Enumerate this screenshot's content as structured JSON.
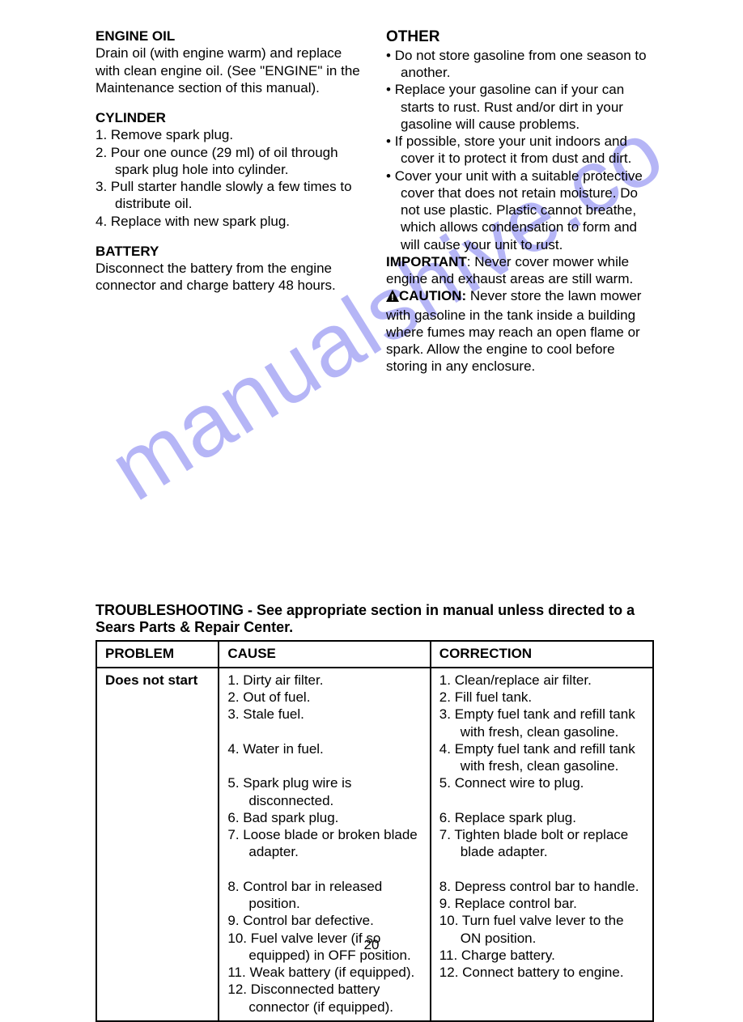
{
  "watermark": "manualshive.co",
  "pageNumber": "20",
  "left": {
    "engineOil": {
      "heading": "ENGINE OIL",
      "body": "Drain oil (with engine warm) and replace with clean engine oil.  (See \"ENGINE\" in the Maintenance section of this manual)."
    },
    "cylinder": {
      "heading": "CYLINDER",
      "items": [
        "1.  Remove spark plug.",
        "2.  Pour one ounce (29 ml) of oil through spark plug hole into cylinder.",
        "3.  Pull starter handle slowly a few times to distribute oil.",
        "4.  Replace with new spark plug."
      ]
    },
    "battery": {
      "heading": "BATTERY",
      "body": "Disconnect the battery from the engine connector and charge battery 48 hours."
    }
  },
  "right": {
    "other": {
      "heading": "OTHER",
      "bullets": [
        "Do not store gasoline from one season to another.",
        "Replace your gasoline can if your can starts to rust.  Rust and/or dirt in your gasoline will cause problems.",
        "If possible, store your unit indoors and cover it to protect it from dust and dirt.",
        "Cover your unit with a suitable protective cover that does not retain moisture.  Do not use plastic.  Plastic cannot breathe, which allows condensation to form and will cause your unit to rust."
      ],
      "importantLabel": "IMPORTANT",
      "importantBody": ":  Never cover mower while engine and exhaust areas are still warm.",
      "cautionLabel": "CAUTION:",
      "cautionBody": "  Never store the lawn mower with gasoline in the tank inside a building where fumes may reach an open flame or spark.  Allow the engine to cool before storing in any enclosure."
    }
  },
  "troubleshootTitle": "TROUBLESHOOTING - See appropriate section in manual unless directed to a Sears Parts & Repair Center.",
  "table": {
    "headers": {
      "problem": "PROBLEM",
      "cause": "CAUSE",
      "correction": "CORRECTION"
    },
    "row": {
      "problem": "Does not start",
      "causes": [
        "1.  Dirty air filter.",
        "2.  Out of fuel.",
        "3.  Stale fuel.",
        "4.  Water in fuel.",
        "5.  Spark plug wire is disconnected.",
        "6.  Bad spark plug.",
        "7.  Loose blade or broken blade adapter.",
        "8.  Control bar in released position.",
        "9.  Control bar defective.",
        "10. Fuel valve lever (if so equipped) in OFF position.",
        "11. Weak battery (if equipped).",
        "12. Disconnected battery connector (if equipped)."
      ],
      "causeSpacers": [
        3,
        4,
        7
      ],
      "corrections": [
        "1.  Clean/replace air filter.",
        "2.  Fill fuel tank.",
        "3.  Empty fuel tank and refill tank with fresh, clean gasoline.",
        "4.  Empty fuel tank and refill tank with fresh, clean gasoline.",
        "5.  Connect wire to plug.",
        "6.  Replace spark plug.",
        "7.  Tighten blade bolt or replace blade adapter.",
        "8.  Depress control bar to handle.",
        "9.  Replace control bar.",
        "10. Turn fuel valve lever to the ON position.",
        "11. Charge battery.",
        "12. Connect battery to engine."
      ],
      "correctionSpacers": [
        5,
        7
      ]
    }
  }
}
